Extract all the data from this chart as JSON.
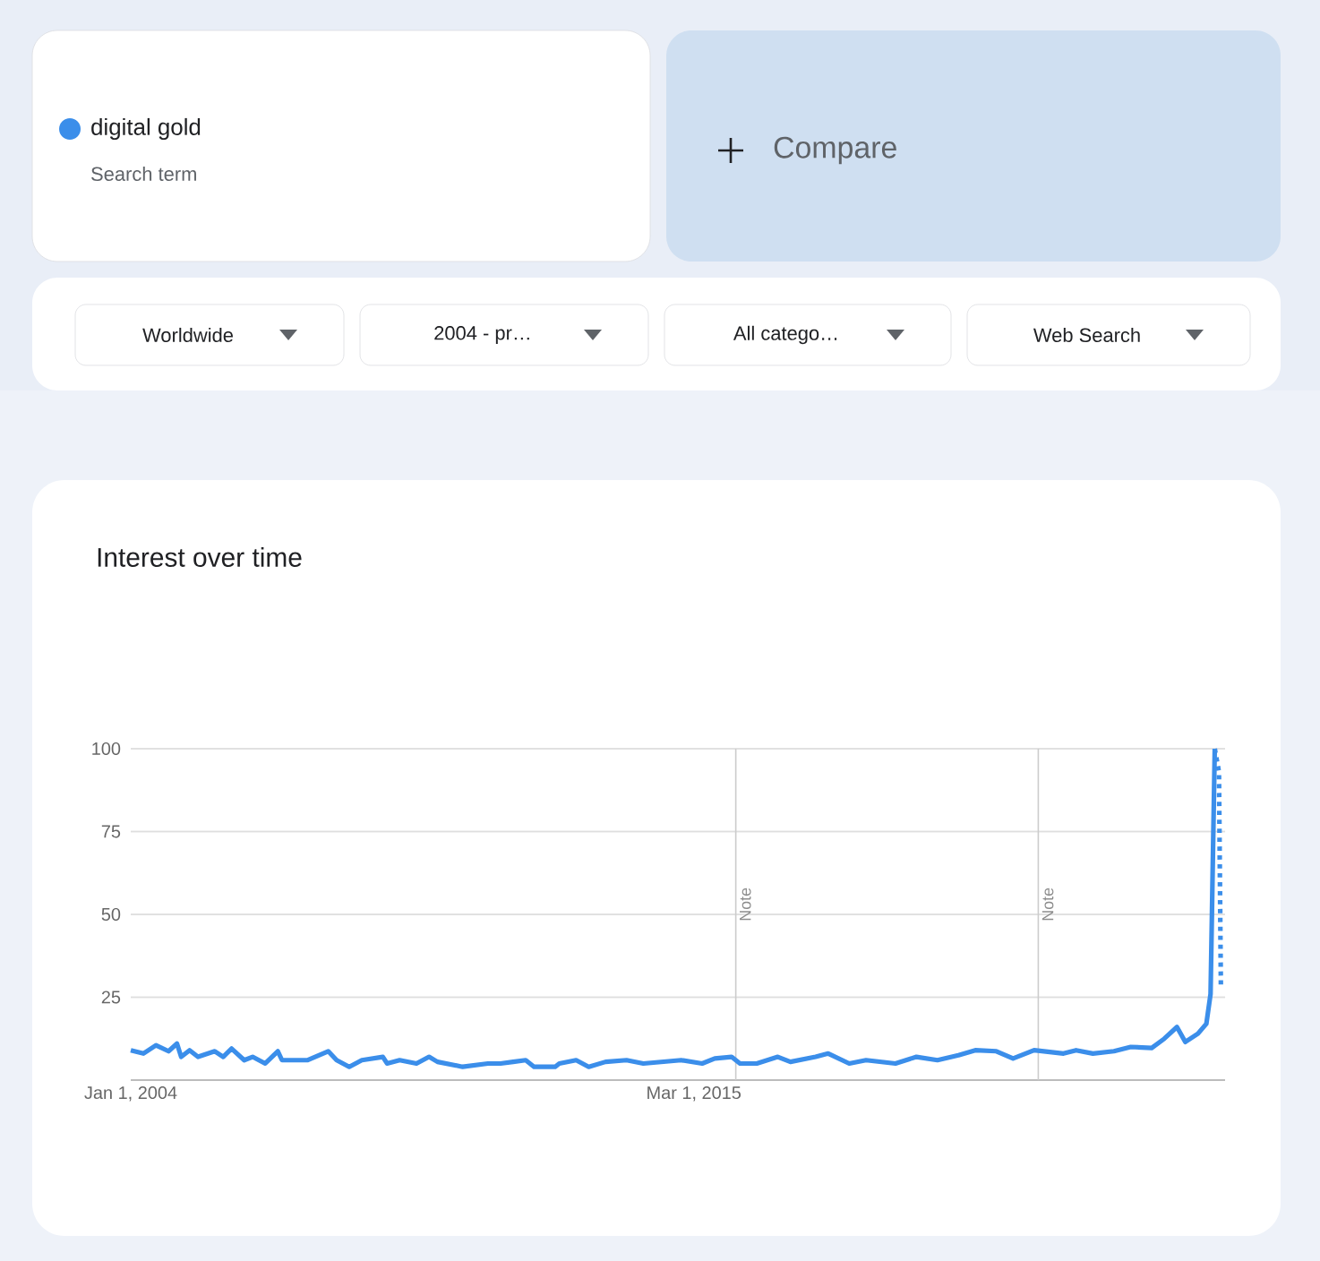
{
  "chart_data": {
    "type": "line",
    "title": "Interest over time",
    "legend": "top left",
    "grid": "y",
    "xlim": [
      "2004-01-01",
      "2025-09-15"
    ],
    "ylim": [
      0,
      100
    ],
    "xticks": [
      {
        "value": "2004-01-01",
        "label": "Jan 1, 2004"
      },
      {
        "value": "2015-03-01",
        "label": "Mar 1, 2015"
      }
    ],
    "yticks": [
      25,
      50,
      75,
      100
    ],
    "ref_lines": [
      {
        "axis": "x",
        "value": "2016-01-01",
        "label": "Note",
        "color": "#cccccc"
      },
      {
        "axis": "x",
        "value": "2022-01-01",
        "label": "Note",
        "color": "#cccccc"
      }
    ],
    "annotations": [
      "Search term",
      "Compare",
      "Worldwide",
      "2004 - pr…",
      "All catego…",
      "Web Search"
    ],
    "series": [
      {
        "name": "digital gold",
        "color": "#3b8eea",
        "line_style": "solid",
        "x": [
          "2004-01",
          "2004-04",
          "2004-07",
          "2004-10",
          "2004-12",
          "2005-01",
          "2005-03",
          "2005-05",
          "2005-09",
          "2005-11",
          "2006-01",
          "2006-04",
          "2006-06",
          "2006-09",
          "2006-12",
          "2007-01",
          "2007-07",
          "2007-12",
          "2008-02",
          "2008-05",
          "2008-08",
          "2009-01",
          "2009-02",
          "2009-05",
          "2009-09",
          "2009-12",
          "2010-02",
          "2010-08",
          "2011-02",
          "2011-05",
          "2011-08",
          "2011-11",
          "2012-01",
          "2012-06",
          "2012-07",
          "2012-11",
          "2013-02",
          "2013-06",
          "2013-11",
          "2014-03",
          "2014-12",
          "2015-05",
          "2015-08",
          "2015-12",
          "2016-02",
          "2016-06",
          "2016-11",
          "2017-02",
          "2017-08",
          "2017-11",
          "2018-04",
          "2018-08",
          "2019-03",
          "2019-08",
          "2020-01",
          "2020-06",
          "2020-10",
          "2021-03",
          "2021-07",
          "2021-12",
          "2022-07",
          "2022-10",
          "2023-02",
          "2023-07",
          "2023-11",
          "2024-04",
          "2024-07",
          "2024-10",
          "2024-12",
          "2025-03",
          "2025-05",
          "2025-06",
          "2025-07"
        ],
        "values": [
          9,
          8,
          10.5,
          8.7,
          11,
          7,
          9,
          7,
          8.7,
          7,
          9.5,
          6,
          7,
          5,
          8.7,
          6,
          6,
          8.7,
          6,
          4,
          6,
          7,
          5,
          6,
          5,
          7,
          5.5,
          4,
          5,
          5,
          5.5,
          6,
          4,
          4,
          5,
          6,
          4,
          5.5,
          6,
          5,
          6,
          5,
          6.5,
          7,
          5,
          5,
          7,
          5.5,
          7,
          8,
          5,
          6,
          5,
          7,
          6,
          7.5,
          9,
          8.7,
          6.5,
          9,
          8,
          9,
          8,
          8.7,
          10,
          9.7,
          12.5,
          16,
          11.5,
          14,
          17,
          26,
          100
        ]
      },
      {
        "color": "#3b8eea",
        "line_style": "dotted",
        "x": [
          "2025-07-01",
          "2025-08-01",
          "2025-08-15"
        ],
        "values": [
          100,
          93,
          28
        ]
      }
    ]
  }
}
